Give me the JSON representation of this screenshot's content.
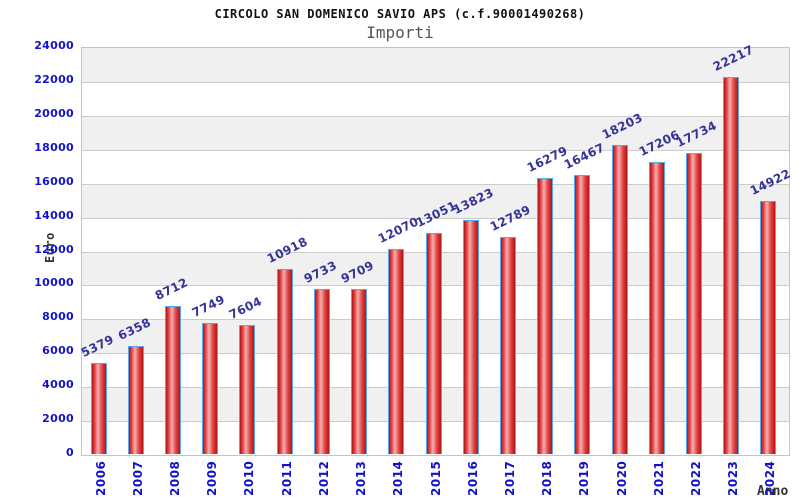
{
  "chart_data": {
    "type": "bar",
    "title": "CIRCOLO SAN DOMENICO SAVIO APS (c.f.90001490268)",
    "subtitle": "Importi",
    "xlabel": "Anno",
    "ylabel": "Euro",
    "categories": [
      "2006",
      "2007",
      "2008",
      "2009",
      "2010",
      "2011",
      "2012",
      "2013",
      "2014",
      "2015",
      "2016",
      "2017",
      "2018",
      "2019",
      "2020",
      "2021",
      "2022",
      "2023",
      "2024"
    ],
    "values": [
      5379,
      6358,
      8712,
      7749,
      7604,
      10918,
      9733,
      9709,
      12070,
      13051,
      13823,
      12789,
      16279,
      16467,
      18203,
      17206,
      17734,
      22217,
      14922
    ],
    "ylim": [
      0,
      24000
    ],
    "ytick_step": 2000,
    "grid": true,
    "legend_position": "none",
    "value_labels_rotated": true,
    "x_labels_rotated_90": true,
    "colors": {
      "background": "#ffffff",
      "title": "#111111",
      "subtitle": "#555555",
      "plot_border": "#c4c4c4",
      "band": "#f0f0f0",
      "gridline": "#cccccc",
      "bar_border": "#58a8f0",
      "bar_fill_edge": "#b41414",
      "bar_fill_mid": "#e04040",
      "bar_fill_highlight": "#f6adad",
      "tick_label": "#1111cc",
      "value_label": "#333399",
      "axis_title": "#333333"
    }
  }
}
